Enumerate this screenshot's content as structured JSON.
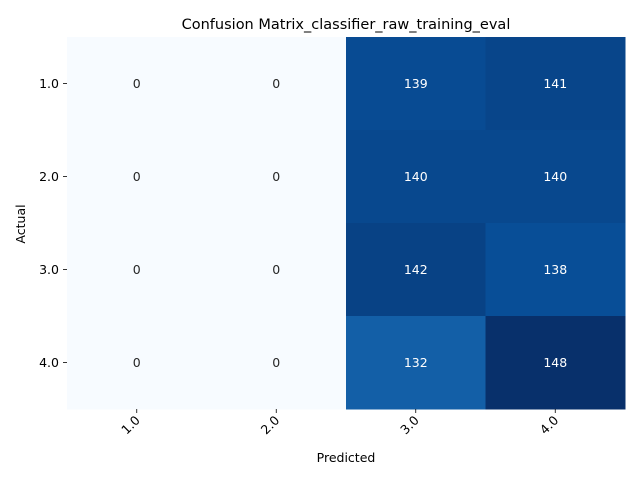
{
  "chart_data": {
    "type": "heatmap",
    "title": "Confusion Matrix_classifier_raw_training_eval",
    "xlabel": "Predicted",
    "ylabel": "Actual",
    "x_categories": [
      "1.0",
      "2.0",
      "3.0",
      "4.0"
    ],
    "y_categories": [
      "1.0",
      "2.0",
      "3.0",
      "4.0"
    ],
    "values": [
      [
        0,
        0,
        139,
        141
      ],
      [
        0,
        0,
        140,
        140
      ],
      [
        0,
        0,
        142,
        138
      ],
      [
        0,
        0,
        132,
        148
      ]
    ],
    "colormap": "Blues",
    "vmin": 0,
    "vmax": 148,
    "x_tick_rotation": 45,
    "colorbar": false
  }
}
